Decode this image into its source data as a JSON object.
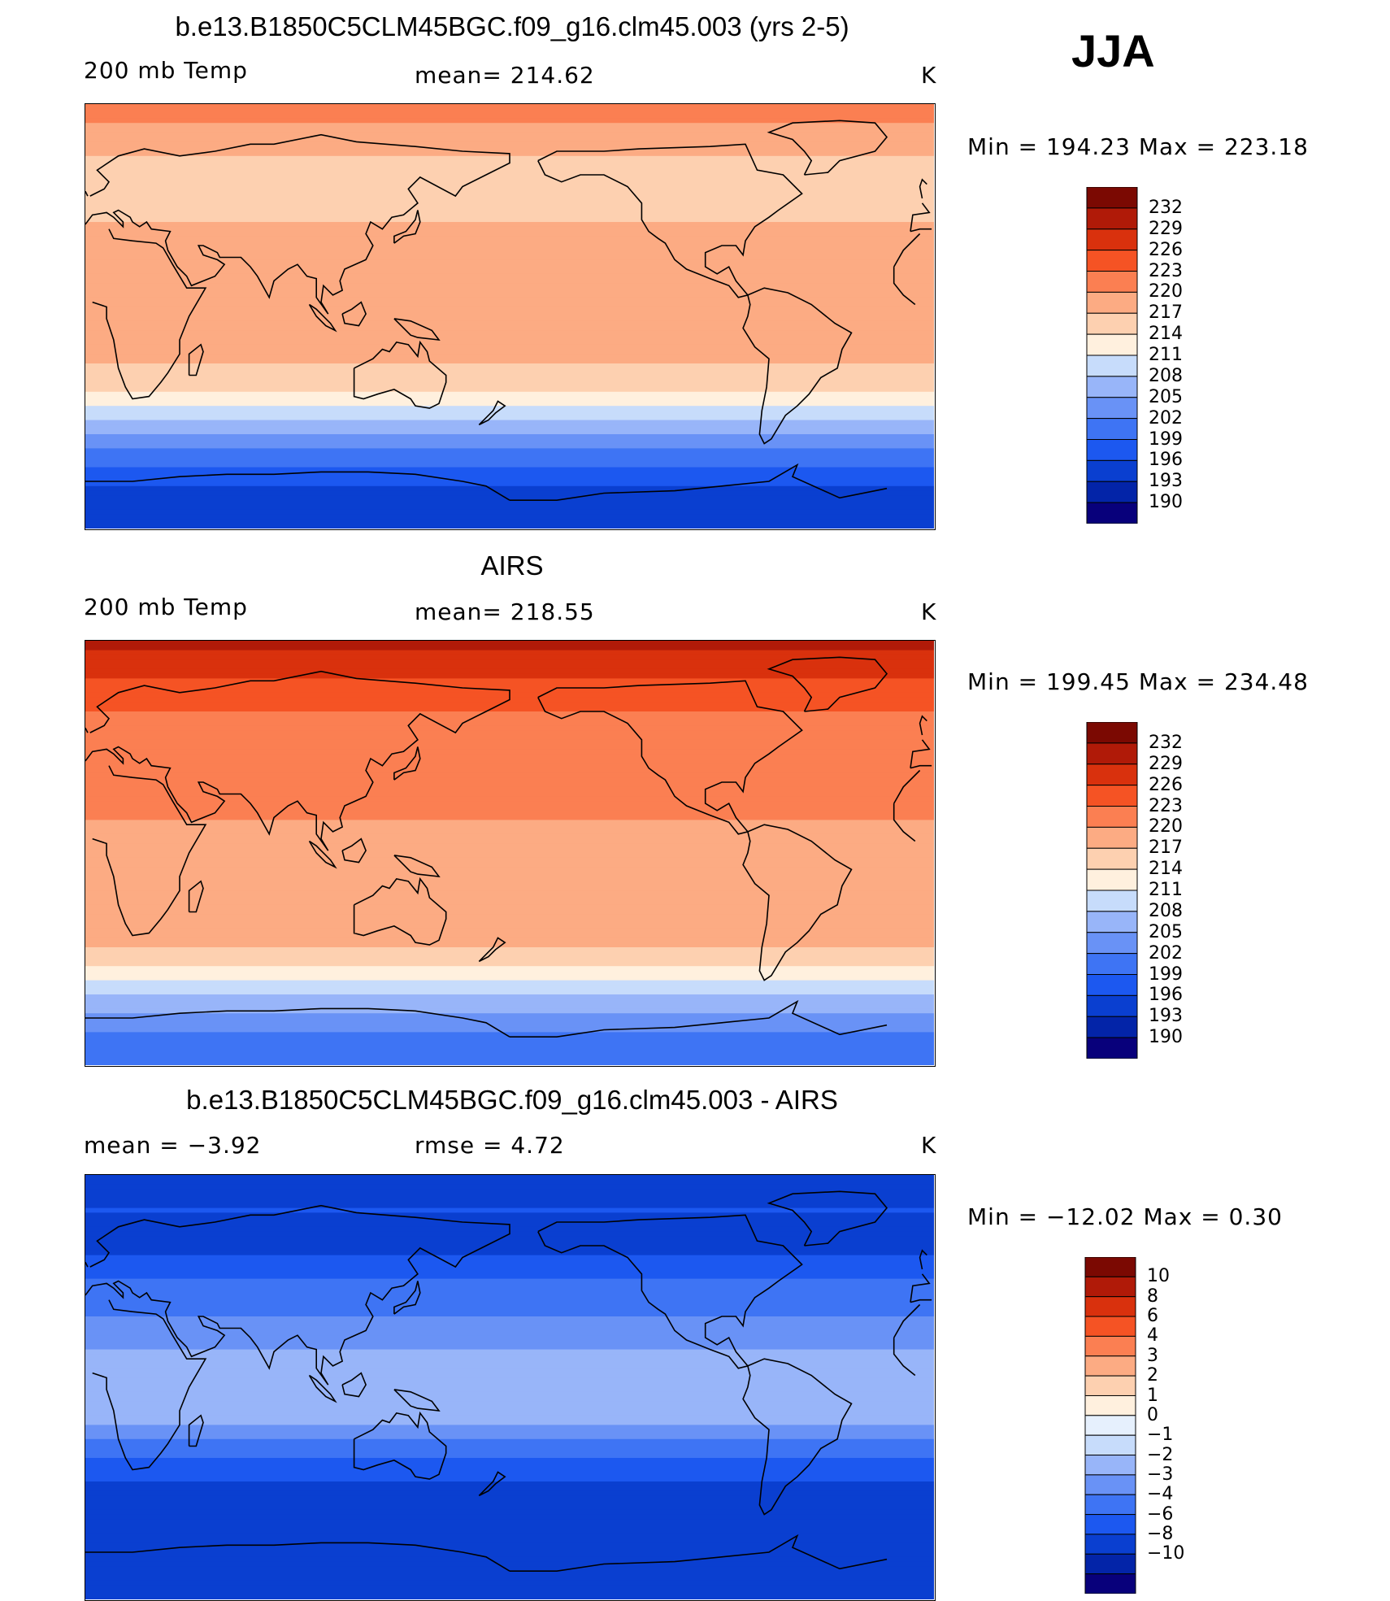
{
  "season": "JJA",
  "colors": {
    "abs_levels": [
      "#08007b",
      "#0324a8",
      "#0a3fd0",
      "#1c58f0",
      "#3e74f4",
      "#6992f6",
      "#98b5f9",
      "#c7dcfb",
      "#fff0de",
      "#fdd0b0",
      "#fcab83",
      "#fb7f52",
      "#f55324",
      "#d9310d",
      "#b01a08",
      "#7b0902"
    ],
    "diff_levels": [
      "#08007b",
      "#0324a8",
      "#0a3fd0",
      "#1c58f0",
      "#3e74f4",
      "#6992f6",
      "#98b5f9",
      "#c7dcfb",
      "#e6f0fd",
      "#fff0de",
      "#fdd0b0",
      "#fcab83",
      "#fb7f52",
      "#f55324",
      "#d9310d",
      "#b01a08",
      "#7b0902"
    ],
    "coast": "#000000"
  },
  "panels": [
    {
      "title": "b.e13.B1850C5CLM45BGC.f09_g16.clm45.003 (yrs 2-5)",
      "left_label": "200 mb Temp",
      "center_label": "mean= 214.62",
      "units": "K",
      "minmax": "Min  =  194.23  Max  =  223.18",
      "colorbar_labels": [
        "232",
        "229",
        "226",
        "223",
        "220",
        "217",
        "214",
        "211",
        "208",
        "205",
        "202",
        "199",
        "196",
        "193",
        "190"
      ]
    },
    {
      "title": "AIRS",
      "left_label": "200 mb Temp",
      "center_label": "mean= 218.55",
      "units": "K",
      "minmax": "Min  =  199.45  Max  =  234.48",
      "colorbar_labels": [
        "232",
        "229",
        "226",
        "223",
        "220",
        "217",
        "214",
        "211",
        "208",
        "205",
        "202",
        "199",
        "196",
        "193",
        "190"
      ]
    },
    {
      "title": "b.e13.B1850C5CLM45BGC.f09_g16.clm45.003 - AIRS",
      "left_label": "mean  =    −3.92",
      "center_label": "rmse  =    4.72",
      "units": "K",
      "minmax": "Min  =  −12.02  Max  =     0.30",
      "colorbar_labels": [
        "10",
        "8",
        "6",
        "4",
        "3",
        "2",
        "1",
        "0",
        "−1",
        "−2",
        "−3",
        "−4",
        "−6",
        "−8",
        "−10"
      ]
    }
  ],
  "chart_data": [
    {
      "type": "heatmap",
      "title": "b.e13.B1850C5CLM45BGC.f09_g16.clm45.003 (yrs 2-5)",
      "variable": "200 mb Temp",
      "units": "K",
      "mean": 214.62,
      "min": 194.23,
      "max": 223.18,
      "contour_levels": [
        190,
        193,
        196,
        199,
        202,
        205,
        208,
        211,
        214,
        217,
        220,
        223,
        226,
        229,
        232
      ],
      "zonal_profile": [
        {
          "lat": 90,
          "value": 221
        },
        {
          "lat": 75,
          "value": 219
        },
        {
          "lat": 60,
          "value": 214
        },
        {
          "lat": 45,
          "value": 216
        },
        {
          "lat": 30,
          "value": 219
        },
        {
          "lat": 15,
          "value": 218
        },
        {
          "lat": 0,
          "value": 218
        },
        {
          "lat": -15,
          "value": 218
        },
        {
          "lat": -30,
          "value": 215
        },
        {
          "lat": -45,
          "value": 207
        },
        {
          "lat": -60,
          "value": 200
        },
        {
          "lat": -75,
          "value": 195
        },
        {
          "lat": -90,
          "value": 194
        }
      ]
    },
    {
      "type": "heatmap",
      "title": "AIRS",
      "variable": "200 mb Temp",
      "units": "K",
      "mean": 218.55,
      "min": 199.45,
      "max": 234.48,
      "contour_levels": [
        190,
        193,
        196,
        199,
        202,
        205,
        208,
        211,
        214,
        217,
        220,
        223,
        226,
        229,
        232
      ],
      "zonal_profile": [
        {
          "lat": 90,
          "value": 230
        },
        {
          "lat": 75,
          "value": 226
        },
        {
          "lat": 60,
          "value": 223
        },
        {
          "lat": 45,
          "value": 221
        },
        {
          "lat": 30,
          "value": 223
        },
        {
          "lat": 15,
          "value": 220
        },
        {
          "lat": 0,
          "value": 218
        },
        {
          "lat": -15,
          "value": 219
        },
        {
          "lat": -30,
          "value": 220
        },
        {
          "lat": -45,
          "value": 215
        },
        {
          "lat": -60,
          "value": 208
        },
        {
          "lat": -75,
          "value": 202
        },
        {
          "lat": -90,
          "value": 200
        }
      ]
    },
    {
      "type": "heatmap",
      "title": "b.e13.B1850C5CLM45BGC.f09_g16.clm45.003 - AIRS",
      "units": "K",
      "mean": -3.92,
      "rmse": 4.72,
      "min": -12.02,
      "max": 0.3,
      "contour_levels": [
        -10,
        -8,
        -6,
        -4,
        -3,
        -2,
        -1,
        0,
        1,
        2,
        3,
        4,
        6,
        8,
        10
      ],
      "zonal_profile": [
        {
          "lat": 90,
          "value": -8
        },
        {
          "lat": 75,
          "value": -6
        },
        {
          "lat": 60,
          "value": -7
        },
        {
          "lat": 45,
          "value": -4
        },
        {
          "lat": 30,
          "value": -3
        },
        {
          "lat": 15,
          "value": -2
        },
        {
          "lat": 0,
          "value": -1
        },
        {
          "lat": -15,
          "value": -2
        },
        {
          "lat": -30,
          "value": -4
        },
        {
          "lat": -45,
          "value": -7
        },
        {
          "lat": -60,
          "value": -8
        },
        {
          "lat": -75,
          "value": -7
        },
        {
          "lat": -90,
          "value": -6
        }
      ]
    }
  ]
}
